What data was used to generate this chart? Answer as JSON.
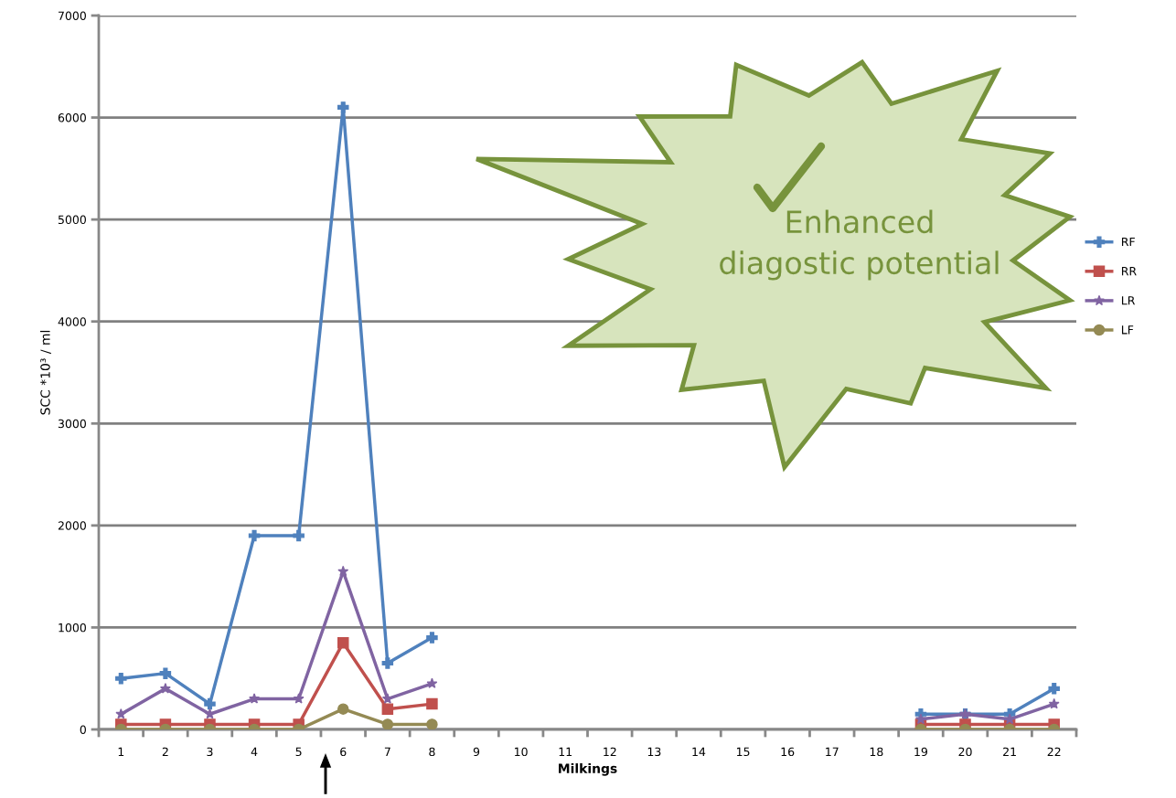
{
  "chart_data": {
    "type": "line",
    "xlabel": "Milkings",
    "ylabel": "SCC *10³ / ml",
    "categories": [
      "1",
      "2",
      "3",
      "4",
      "5",
      "6",
      "7",
      "8",
      "9",
      "10",
      "11",
      "12",
      "13",
      "14",
      "15",
      "16",
      "17",
      "18",
      "19",
      "20",
      "21",
      "22"
    ],
    "series": [
      {
        "name": "RF",
        "color": "#4f81bd",
        "marker": "cross",
        "values": [
          500,
          550,
          250,
          1900,
          1900,
          6100,
          650,
          900,
          null,
          null,
          null,
          null,
          null,
          null,
          null,
          null,
          null,
          null,
          150,
          150,
          150,
          400
        ]
      },
      {
        "name": "RR",
        "color": "#c0504d",
        "marker": "square",
        "values": [
          50,
          50,
          50,
          50,
          50,
          850,
          200,
          250,
          null,
          null,
          null,
          null,
          null,
          null,
          null,
          null,
          null,
          null,
          50,
          50,
          50,
          50
        ]
      },
      {
        "name": "LR",
        "color": "#8064a2",
        "marker": "star",
        "values": [
          150,
          400,
          150,
          300,
          300,
          1550,
          300,
          450,
          null,
          null,
          null,
          null,
          null,
          null,
          null,
          null,
          null,
          null,
          100,
          150,
          100,
          250
        ]
      },
      {
        "name": "LF",
        "color": "#948a54",
        "marker": "circle",
        "values": [
          0,
          0,
          0,
          0,
          0,
          200,
          50,
          50,
          null,
          null,
          null,
          null,
          null,
          null,
          null,
          null,
          null,
          null,
          0,
          0,
          0,
          0
        ]
      }
    ],
    "ylim": [
      0,
      7000
    ],
    "yticks": [
      0,
      1000,
      2000,
      3000,
      4000,
      5000,
      6000,
      7000
    ],
    "grid": "y",
    "legend": "right",
    "line_style": "solid",
    "annotations": [
      "Enhanced\ndiagostic potential"
    ]
  }
}
